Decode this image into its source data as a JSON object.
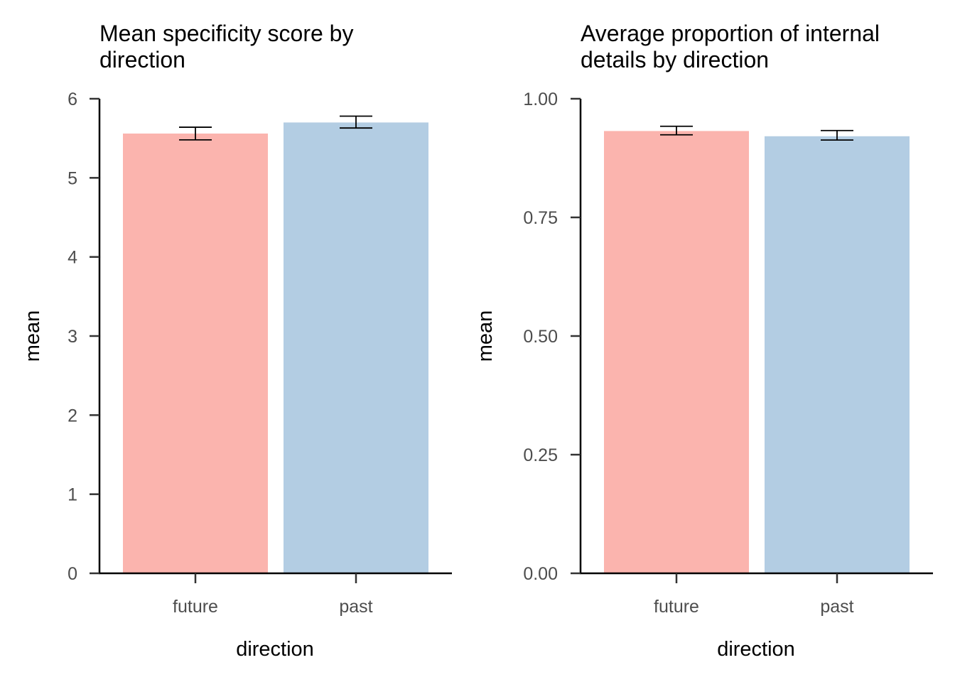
{
  "chart_data": [
    {
      "type": "bar",
      "title_lines": [
        "Mean specificity score by",
        "direction"
      ],
      "xlabel": "direction",
      "ylabel": "mean",
      "categories": [
        "future",
        "past"
      ],
      "values": [
        5.56,
        5.7
      ],
      "error_low": [
        5.48,
        5.63
      ],
      "error_high": [
        5.64,
        5.78
      ],
      "colors": [
        "#fbb4ae",
        "#b3cde3"
      ],
      "ylim": [
        0,
        6
      ],
      "yticks": [
        0,
        1,
        2,
        3,
        4,
        5,
        6
      ],
      "ytick_labels": [
        "0",
        "1",
        "2",
        "3",
        "4",
        "5",
        "6"
      ],
      "grid": false,
      "legend": "none"
    },
    {
      "type": "bar",
      "title_lines": [
        "Average proportion of internal",
        "details by direction"
      ],
      "xlabel": "direction",
      "ylabel": "mean",
      "categories": [
        "future",
        "past"
      ],
      "values": [
        0.932,
        0.921
      ],
      "error_low": [
        0.924,
        0.913
      ],
      "error_high": [
        0.942,
        0.933
      ],
      "colors": [
        "#fbb4ae",
        "#b3cde3"
      ],
      "ylim": [
        0,
        1
      ],
      "yticks": [
        0,
        0.25,
        0.5,
        0.75,
        1.0
      ],
      "ytick_labels": [
        "0.00",
        "0.25",
        "0.50",
        "0.75",
        "1.00"
      ],
      "grid": false,
      "legend": "none"
    }
  ]
}
